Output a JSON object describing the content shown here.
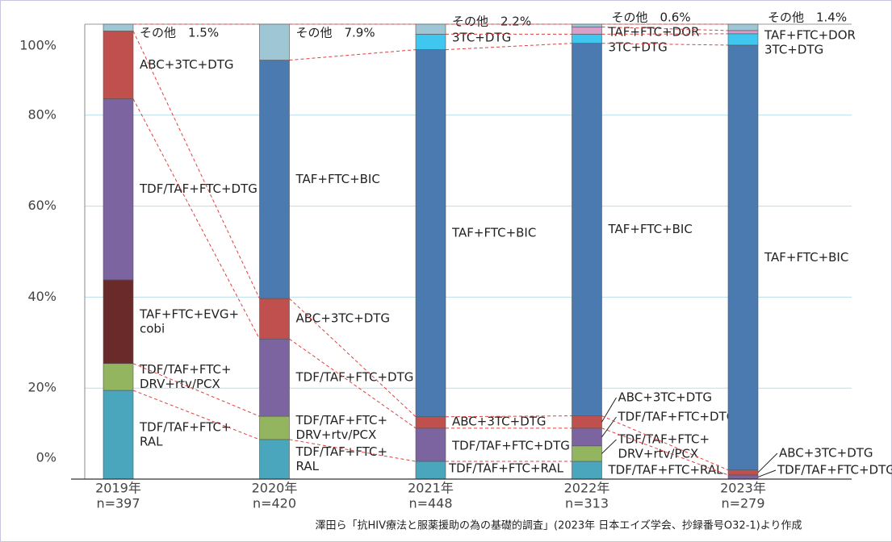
{
  "chart_data": {
    "type": "stacked_bar",
    "categories": [
      "2019年",
      "2020年",
      "2021年",
      "2022年",
      "2023年"
    ],
    "n_labels": [
      "n=397",
      "n=420",
      "n=448",
      "n=313",
      "n=279"
    ],
    "ylim": [
      0,
      100
    ],
    "yticks": [
      {
        "value": 0,
        "label": "0%"
      },
      {
        "value": 20,
        "label": "20%"
      },
      {
        "value": 40,
        "label": "40%"
      },
      {
        "value": 60,
        "label": "60%"
      },
      {
        "value": 80,
        "label": "80%"
      },
      {
        "value": 100,
        "label": "100%"
      }
    ],
    "grid": true,
    "series": [
      {
        "color": "#4aa6bd",
        "values": [
          19.5,
          8.7,
          3.9,
          3.9,
          null
        ],
        "labels": [
          [
            "TDF/TAF+FTC+",
            "RAL"
          ],
          [
            "TDF/TAF+FTC+",
            "RAL"
          ],
          [
            "TDF/TAF+FTC+RAL"
          ],
          [
            "TDF/TAF+FTC+RAL"
          ],
          null
        ]
      },
      {
        "color": "#94b55f",
        "values": [
          5.9,
          5.1,
          null,
          3.4,
          null
        ],
        "labels": [
          [
            "TDF/TAF+FTC+",
            "DRV+rtv/PCX"
          ],
          [
            "TDF/TAF+FTC+",
            "DRV+rtv/PCX"
          ],
          null,
          [
            "TDF/TAF+FTC+",
            "DRV+rtv/PCX"
          ],
          null
        ]
      },
      {
        "color": "#6b2a2a",
        "values": [
          18.4,
          null,
          null,
          null,
          null
        ],
        "labels": [
          [
            "TAF+FTC+EVG+",
            "cobi"
          ],
          null,
          null,
          null,
          null
        ]
      },
      {
        "color": "#7b64a0",
        "values": [
          39.8,
          17.0,
          7.3,
          3.9,
          0.9
        ],
        "labels": [
          [
            "TDF/TAF+FTC+DTG"
          ],
          [
            "TDF/TAF+FTC+DTG"
          ],
          [
            "TDF/TAF+FTC+DTG"
          ],
          [
            "TDF/TAF+FTC+DTG"
          ],
          [
            "TDF/TAF+FTC+DTG"
          ]
        ]
      },
      {
        "color": "#c0504d",
        "values": [
          14.9,
          8.9,
          2.5,
          2.7,
          1.1
        ],
        "labels": [
          [
            "ABC+3TC+DTG"
          ],
          [
            "ABC+3TC+DTG"
          ],
          [
            "ABC+3TC+DTG"
          ],
          [
            "ABC+3TC+DTG"
          ],
          [
            "ABC+3TC+DTG"
          ]
        ]
      },
      {
        "color": "#4a7ab0",
        "values": [
          null,
          52.4,
          80.7,
          81.9,
          93.4
        ],
        "labels": [
          null,
          [
            "TAF+FTC+BIC"
          ],
          [
            "TAF+FTC+BIC"
          ],
          [
            "TAF+FTC+BIC"
          ],
          [
            "TAF+FTC+BIC"
          ]
        ]
      },
      {
        "color": "#3fc7f0",
        "values": [
          null,
          null,
          3.4,
          2.0,
          2.5
        ],
        "labels": [
          null,
          null,
          [
            "3TC+DTG"
          ],
          [
            "3TC+DTG"
          ],
          [
            "3TC+DTG"
          ]
        ]
      },
      {
        "color": "#d8a0c8",
        "values": [
          null,
          null,
          null,
          1.6,
          0.7
        ],
        "labels": [
          null,
          null,
          null,
          [
            "TAF+FTC+DOR"
          ],
          [
            "TAF+FTC+DOR"
          ]
        ]
      },
      {
        "color": "#9ec6d4",
        "values": [
          1.5,
          7.9,
          2.2,
          0.6,
          1.4
        ],
        "labels": [
          [
            "その他"
          ],
          [
            "その他"
          ],
          [
            "その他"
          ],
          [
            "その他"
          ],
          [
            "その他"
          ]
        ],
        "value_labels": [
          "1.5%",
          "7.9%",
          "2.2%",
          "0.6%",
          "1.4%"
        ]
      }
    ],
    "source": "澤田ら「抗HIV療法と服薬援助の為の基礎的調査」(2023年 日本エイズ学会、抄録番号O32-1)より作成"
  }
}
